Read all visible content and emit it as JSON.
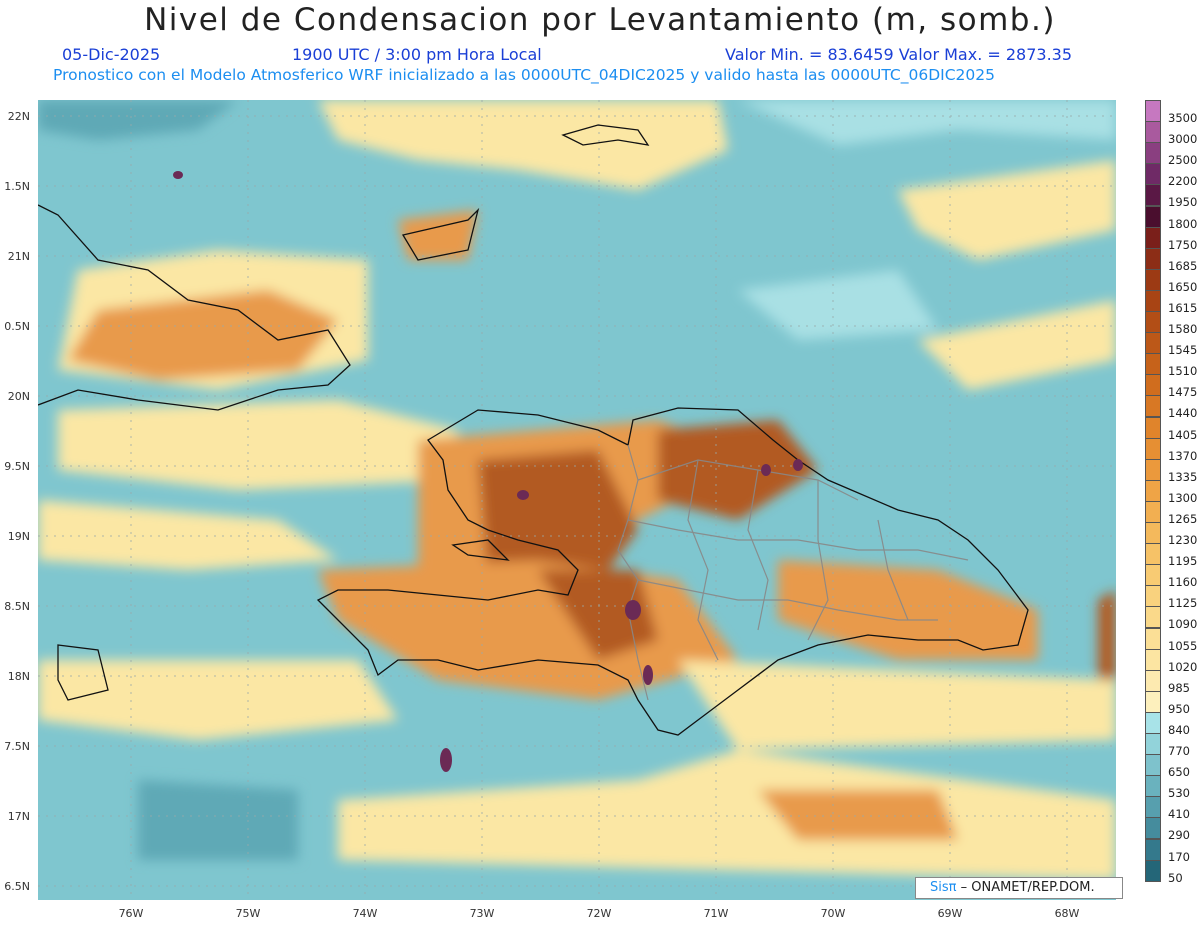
{
  "title": "Nivel de Condensacion por Levantamiento (m, somb.)",
  "date_text": "05-Dic-2025",
  "time_text": "1900 UTC / 3:00 pm Hora Local",
  "minmax_text": "Valor Min. = 83.6459   Valor Max. = 2873.35",
  "forecast_text": "Pronostico con el Modelo Atmosferico WRF inicializado a las 0000UTC_04DIC2025 y valido hasta las  0000UTC_06DIC2025",
  "credit": {
    "brand": "Sisπ",
    "text": "– ONAMET/REP.DOM."
  },
  "lat_labels": [
    "22N",
    "1.5N",
    "21N",
    "0.5N",
    "20N",
    "9.5N",
    "19N",
    "8.5N",
    "18N",
    "7.5N",
    "17N",
    "6.5N"
  ],
  "lon_labels": [
    "76W",
    "75W",
    "74W",
    "73W",
    "72W",
    "71W",
    "70W",
    "69W",
    "68W"
  ],
  "colorbar": {
    "labels": [
      "3500",
      "3000",
      "2500",
      "2200",
      "1950",
      "1800",
      "1750",
      "1685",
      "1650",
      "1615",
      "1580",
      "1545",
      "1510",
      "1475",
      "1440",
      "1405",
      "1370",
      "1335",
      "1300",
      "1265",
      "1230",
      "1195",
      "1160",
      "1125",
      "1090",
      "1055",
      "1020",
      "985",
      "950",
      "840",
      "770",
      "650",
      "530",
      "410",
      "290",
      "170",
      "50"
    ],
    "colors": [
      "#c678c0",
      "#a95a9e",
      "#8a3f80",
      "#6f2a66",
      "#5a1845",
      "#4a0e2e",
      "#7a1f1a",
      "#8c2d16",
      "#9c3a14",
      "#a84414",
      "#b24e16",
      "#bc5818",
      "#c6621a",
      "#d06d1e",
      "#d87824",
      "#e0842b",
      "#e68f33",
      "#eb993c",
      "#efa446",
      "#f2af51",
      "#f4b95c",
      "#f6c267",
      "#f8cb73",
      "#f9d27e",
      "#fad98a",
      "#fbdf96",
      "#fce5a2",
      "#fdeab0",
      "#fdf0bd",
      "#a8e3e8",
      "#92d3da",
      "#7ec2cc",
      "#6ab2be",
      "#579fae",
      "#458c9d",
      "#34798c",
      "#246678"
    ]
  },
  "map_colors": {
    "ocean": "#7fc6cf",
    "deep": "#5fa9b6",
    "shallow": "#a9e0e4",
    "yellow": "#fbe7a4",
    "orange": "#e89a4c",
    "brown": "#b25a22",
    "purple": "#6b2a55"
  }
}
